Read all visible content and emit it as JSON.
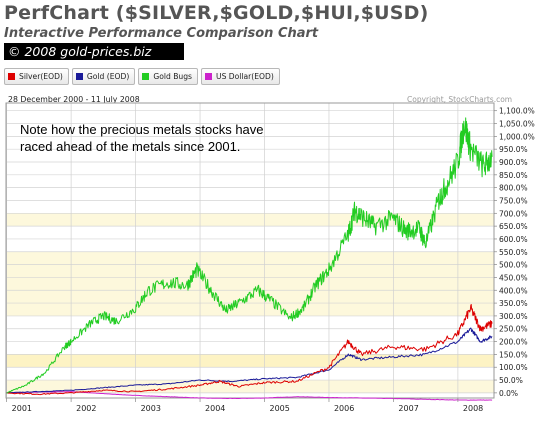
{
  "header": {
    "title": "PerfChart ($SILVER,$GOLD,$HUI,$USD)",
    "subtitle": "Interactive Performance Comparison Chart",
    "copyright": "© 2008 gold-prices.biz"
  },
  "legend": [
    {
      "label": "Silver(EOD)",
      "color": "#dd0000"
    },
    {
      "label": "Gold (EOD)",
      "color": "#1a1a99"
    },
    {
      "label": "Gold Bugs",
      "color": "#22cc22"
    },
    {
      "label": "US Dollar(EOD)",
      "color": "#cc22cc"
    }
  ],
  "date_range": "28 December 2000 - 11 July 2008",
  "credit": "Copyright, StockCharts.com",
  "annotation": [
    "Note how the precious metals stocks have",
    "raced ahead of the metals since 2001."
  ],
  "chart_data": {
    "type": "line",
    "x_ticks": [
      "2001",
      "2002",
      "2003",
      "2004",
      "2005",
      "2006",
      "2007",
      "2008"
    ],
    "ylim": [
      -20,
      1130
    ],
    "y_ticks": [
      0,
      50,
      100,
      150,
      200,
      250,
      300,
      350,
      400,
      450,
      500,
      550,
      600,
      650,
      700,
      750,
      800,
      850,
      900,
      950,
      1000,
      1050,
      1100
    ],
    "y_tick_labels": [
      "0.0%",
      "50.0%",
      "100.0%",
      "150.0%",
      "200.0%",
      "250.0%",
      "300.0%",
      "350.0%",
      "400.0%",
      "450.0%",
      "500.0%",
      "550.0%",
      "600.0%",
      "650.0%",
      "700.0%",
      "750.0%",
      "800.0%",
      "850.0%",
      "900.0%",
      "950.0%",
      "1,000.0%",
      "1,050.0%",
      "1,100.0%"
    ],
    "ylabel_unit": "%",
    "grid": true,
    "series": [
      {
        "name": "Gold Bugs",
        "color": "#22cc22",
        "x": [
          2001.0,
          2001.3,
          2001.6,
          2001.9,
          2002.0,
          2002.3,
          2002.5,
          2002.7,
          2003.0,
          2003.2,
          2003.5,
          2003.8,
          2003.95,
          2004.2,
          2004.4,
          2004.6,
          2004.9,
          2005.1,
          2005.4,
          2005.6,
          2005.8,
          2006.0,
          2006.3,
          2006.4,
          2006.5,
          2006.7,
          2007.0,
          2007.2,
          2007.4,
          2007.5,
          2007.7,
          2007.8,
          2008.0,
          2008.1,
          2008.2,
          2008.4,
          2008.53
        ],
        "y": [
          0,
          30,
          80,
          180,
          200,
          270,
          300,
          280,
          330,
          400,
          430,
          420,
          480,
          390,
          320,
          350,
          400,
          360,
          290,
          330,
          420,
          480,
          620,
          710,
          690,
          650,
          680,
          630,
          640,
          580,
          750,
          800,
          900,
          1050,
          950,
          880,
          920
        ]
      },
      {
        "name": "Silver(EOD)",
        "color": "#dd0000",
        "x": [
          2001.0,
          2001.5,
          2002.0,
          2002.5,
          2003.0,
          2003.5,
          2004.0,
          2004.3,
          2004.6,
          2005.0,
          2005.5,
          2006.0,
          2006.3,
          2006.5,
          2007.0,
          2007.5,
          2008.0,
          2008.2,
          2008.35,
          2008.53
        ],
        "y": [
          0,
          -5,
          0,
          10,
          5,
          15,
          30,
          45,
          25,
          40,
          45,
          100,
          200,
          150,
          180,
          170,
          230,
          330,
          250,
          270
        ]
      },
      {
        "name": "Gold (EOD)",
        "color": "#1a1a99",
        "x": [
          2001.0,
          2001.5,
          2002.0,
          2002.5,
          2003.0,
          2003.5,
          2004.0,
          2004.5,
          2005.0,
          2005.5,
          2006.0,
          2006.3,
          2006.5,
          2007.0,
          2007.5,
          2008.0,
          2008.2,
          2008.35,
          2008.53
        ],
        "y": [
          0,
          5,
          10,
          20,
          30,
          35,
          50,
          45,
          55,
          60,
          90,
          150,
          130,
          140,
          150,
          200,
          250,
          200,
          220
        ]
      },
      {
        "name": "US Dollar(EOD)",
        "color": "#cc22cc",
        "x": [
          2001.0,
          2001.5,
          2002.0,
          2002.5,
          2003.0,
          2003.5,
          2004.0,
          2004.5,
          2005.0,
          2005.5,
          2006.0,
          2006.5,
          2007.0,
          2007.5,
          2008.0,
          2008.53
        ],
        "y": [
          0,
          3,
          5,
          -3,
          -10,
          -15,
          -20,
          -22,
          -20,
          -15,
          -18,
          -20,
          -22,
          -25,
          -28,
          -28
        ]
      }
    ]
  }
}
